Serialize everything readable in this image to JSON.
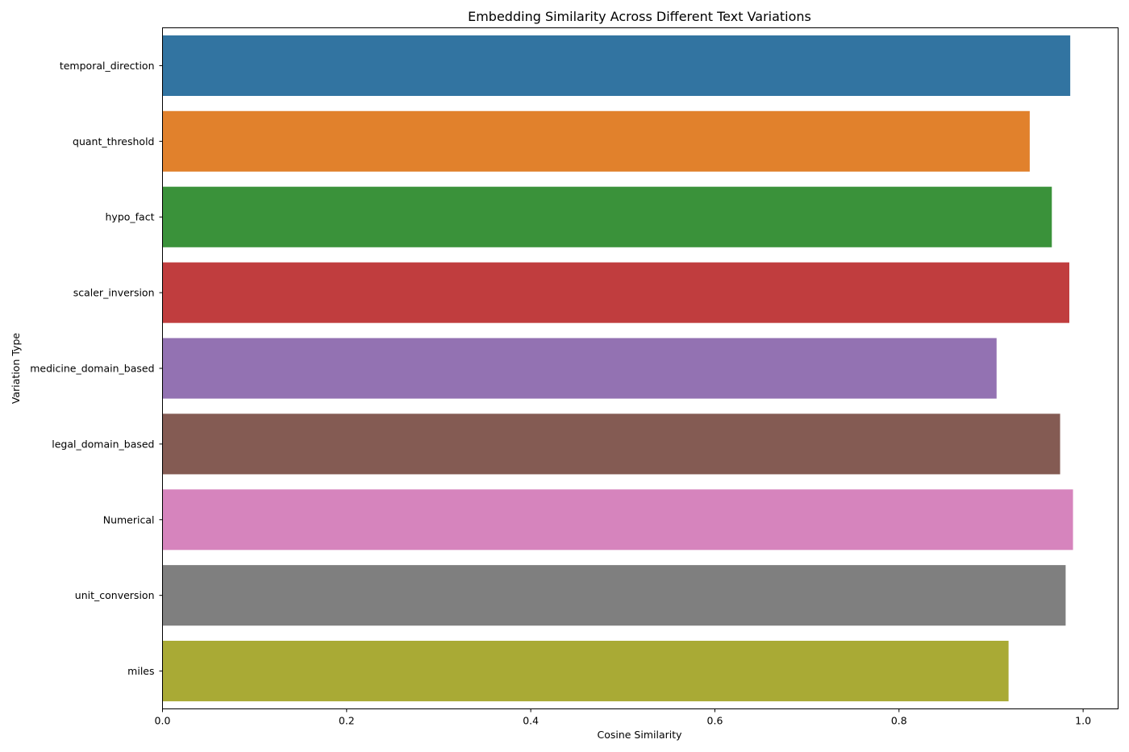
{
  "chart_data": {
    "type": "bar",
    "orientation": "horizontal",
    "title": "Embedding Similarity Across Different Text Variations",
    "xlabel": "Cosine Similarity",
    "ylabel": "Variation Type",
    "xlim": [
      0,
      1.038
    ],
    "xticks": [
      0.0,
      0.2,
      0.4,
      0.6,
      0.8,
      1.0
    ],
    "xtick_labels": [
      "0.0",
      "0.2",
      "0.4",
      "0.6",
      "0.8",
      "1.0"
    ],
    "grid": false,
    "categories": [
      "temporal_direction",
      "quant_threshold",
      "hypo_fact",
      "scaler_inversion",
      "medicine_domain_based",
      "legal_domain_based",
      "Numerical",
      "unit_conversion",
      "miles"
    ],
    "values": [
      0.986,
      0.942,
      0.966,
      0.985,
      0.906,
      0.975,
      0.989,
      0.981,
      0.919
    ],
    "colors": [
      "#3274a1",
      "#e1812c",
      "#3a923a",
      "#c03d3e",
      "#9372b2",
      "#845b53",
      "#d684bd",
      "#7f7f7f",
      "#a9aa35"
    ]
  }
}
